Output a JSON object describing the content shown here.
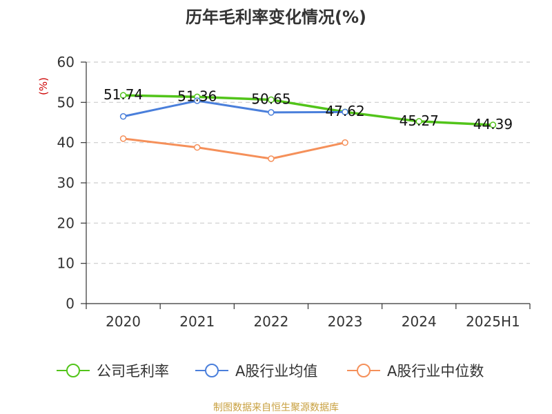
{
  "chart_data": {
    "type": "line",
    "title": "历年毛利率变化情况(%)",
    "ylabel": "(%)",
    "categories": [
      "2020",
      "2021",
      "2022",
      "2023",
      "2024",
      "2025H1"
    ],
    "ylim": [
      0,
      60
    ],
    "yticks": [
      "0",
      "10",
      "20",
      "30",
      "40",
      "50",
      "60"
    ],
    "grid": true,
    "legend_position": "bottom",
    "series": [
      {
        "name": "公司毛利率",
        "color": "#52c41a",
        "values": [
          51.74,
          51.36,
          50.65,
          47.62,
          45.27,
          44.39
        ],
        "labels": [
          "51.74",
          "51.36",
          "50.65",
          "47.62",
          "45.27",
          "44.39"
        ]
      },
      {
        "name": "A股行业均值",
        "color": "#4a7fdb",
        "values": [
          46.5,
          50.4,
          47.5,
          47.6,
          null,
          null
        ]
      },
      {
        "name": "A股行业中位数",
        "color": "#f5905a",
        "values": [
          41.0,
          38.8,
          36.0,
          40.0,
          null,
          null
        ]
      }
    ]
  },
  "source_text": "制图数据来自恒生聚源数据库",
  "colors": {
    "unit": "#cc0000",
    "source": "#c8a040",
    "axis": "#333333",
    "grid": "#cccccc"
  }
}
